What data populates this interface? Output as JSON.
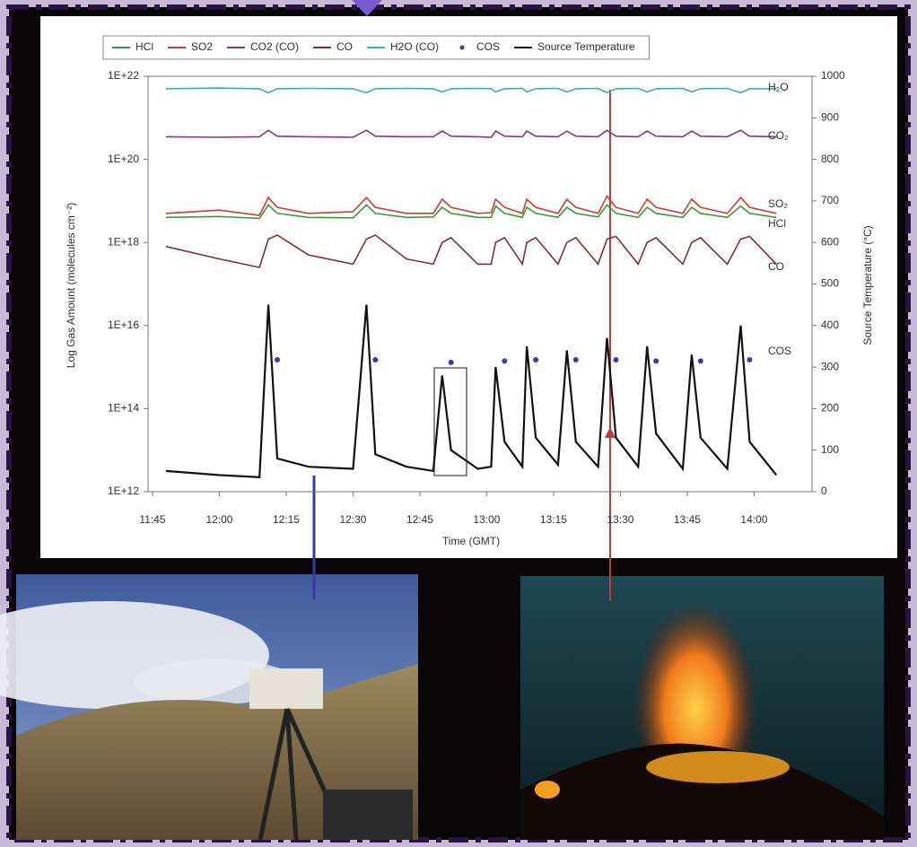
{
  "chart_data": {
    "type": "line",
    "x_label": "Time (GMT)",
    "y_label": "Log Gas Amount (molecules cm⁻²)",
    "y2_label": "Source Temperature (°C)",
    "log_y": true,
    "legend": "top",
    "xlim": [
      704,
      853
    ],
    "xticks": [
      {
        "value": 705,
        "label": "11:45"
      },
      {
        "value": 720,
        "label": "12:00"
      },
      {
        "value": 735,
        "label": "12:15"
      },
      {
        "value": 750,
        "label": "12:30"
      },
      {
        "value": 765,
        "label": "12:45"
      },
      {
        "value": 780,
        "label": "13:00"
      },
      {
        "value": 795,
        "label": "13:15"
      },
      {
        "value": 810,
        "label": "13:30"
      },
      {
        "value": 825,
        "label": "13:45"
      },
      {
        "value": 840,
        "label": "14:00"
      }
    ],
    "ylim": [
      1000000000000.0,
      1e+22
    ],
    "yticks": [
      {
        "value": 1000000000000.0,
        "label": "1E+12"
      },
      {
        "value": 100000000000000.0,
        "label": "1E+14"
      },
      {
        "value": 1e+16,
        "label": "1E+16"
      },
      {
        "value": 1e+18,
        "label": "1E+18"
      },
      {
        "value": 1e+20,
        "label": "1E+20"
      },
      {
        "value": 1e+22,
        "label": "1E+22"
      }
    ],
    "y2lim": [
      0,
      1000
    ],
    "y2ticks": [
      0,
      100,
      200,
      300,
      400,
      500,
      600,
      700,
      800,
      900,
      1000
    ],
    "annotations": [
      "H₂O",
      "CO₂",
      "SO₂",
      "HCl",
      "CO",
      "COS"
    ],
    "x": [
      708,
      720,
      729,
      731,
      733,
      740,
      750,
      753,
      755,
      762,
      768,
      770,
      772,
      778,
      781,
      782,
      784,
      788,
      789,
      791,
      796,
      798,
      800,
      805,
      807,
      809,
      814,
      816,
      818,
      824,
      826,
      828,
      834,
      837,
      839,
      845
    ],
    "series": [
      {
        "name": "HCl",
        "color": "#3a9a3a",
        "mode": "line",
        "values": [
          4e+18,
          4.2e+18,
          3.8e+18,
          8e+18,
          5e+18,
          4e+18,
          3.9e+18,
          8e+18,
          5e+18,
          4e+18,
          4.1e+18,
          7e+18,
          5e+18,
          4e+18,
          4e+18,
          7.5e+18,
          5e+18,
          4e+18,
          7e+18,
          5e+18,
          4e+18,
          7e+18,
          5e+18,
          4.1e+18,
          8e+18,
          5e+18,
          4e+18,
          7e+18,
          5e+18,
          4e+18,
          7e+18,
          5e+18,
          4e+18,
          7.5e+18,
          5e+18,
          4e+18
        ]
      },
      {
        "name": "SO2",
        "color": "#d43a2a",
        "mode": "line",
        "values": [
          5e+18,
          6e+18,
          4.5e+18,
          1.2e+19,
          7e+18,
          5e+18,
          5.5e+18,
          1.2e+19,
          7e+18,
          5e+18,
          5e+18,
          1.1e+19,
          7e+18,
          5e+18,
          5.2e+18,
          1.1e+19,
          7e+18,
          5e+18,
          1.1e+19,
          7e+18,
          5e+18,
          1.1e+19,
          7e+18,
          5e+18,
          1.3e+19,
          7e+18,
          5e+18,
          1.1e+19,
          7e+18,
          5e+18,
          1.1e+19,
          7e+18,
          5e+18,
          1.2e+19,
          7e+18,
          5e+18
        ]
      },
      {
        "name": "CO2 (CO)",
        "color": "#8a3a6a",
        "mode": "line",
        "values": [
          3.5e+20,
          3.4e+20,
          3.5e+20,
          5e+20,
          3.6e+20,
          3.5e+20,
          3.4e+20,
          5e+20,
          3.6e+20,
          3.5e+20,
          3.5e+20,
          4.8e+20,
          3.6e+20,
          3.5e+20,
          3.4e+20,
          4.8e+20,
          3.6e+20,
          3.5e+20,
          4.8e+20,
          3.6e+20,
          3.5e+20,
          4.8e+20,
          3.6e+20,
          3.5e+20,
          5e+20,
          3.6e+20,
          3.5e+20,
          4.8e+20,
          3.6e+20,
          3.5e+20,
          4.8e+20,
          3.6e+20,
          3.5e+20,
          5e+20,
          3.6e+20,
          3.5e+20
        ]
      },
      {
        "name": "CO",
        "color": "#8b2b2b",
        "mode": "line",
        "values": [
          8e+17,
          4e+17,
          2.5e+17,
          1.2e+18,
          1.5e+18,
          5e+17,
          3e+17,
          1.2e+18,
          1.5e+18,
          4e+17,
          3e+17,
          1e+18,
          1.3e+18,
          3e+17,
          3e+17,
          1e+18,
          1.3e+18,
          3e+17,
          1e+18,
          1.3e+18,
          3e+17,
          1e+18,
          1.3e+18,
          3e+17,
          1.2e+18,
          1.4e+18,
          3e+17,
          1e+18,
          1.3e+18,
          3e+17,
          1e+18,
          1.3e+18,
          3e+17,
          1.2e+18,
          1.4e+18,
          3e+17
        ]
      },
      {
        "name": "H2O (CO)",
        "color": "#3bb0a8",
        "mode": "line",
        "values": [
          5e+21,
          5.2e+21,
          5e+21,
          4e+21,
          5e+21,
          5.1e+21,
          5e+21,
          4e+21,
          5e+21,
          5.1e+21,
          5e+21,
          4.2e+21,
          5e+21,
          5.1e+21,
          5e+21,
          4.2e+21,
          5e+21,
          5.1e+21,
          4.2e+21,
          5e+21,
          5.1e+21,
          4.2e+21,
          5e+21,
          5.1e+21,
          4e+21,
          5e+21,
          5.1e+21,
          4.2e+21,
          5e+21,
          5.1e+21,
          4.2e+21,
          5e+21,
          5.1e+21,
          4e+21,
          5e+21,
          5e+21
        ]
      },
      {
        "name": "COS",
        "color": "#3a3ab0",
        "mode": "markers",
        "values": [
          null,
          null,
          null,
          null,
          1500000000000000.0,
          null,
          null,
          null,
          1500000000000000.0,
          null,
          null,
          null,
          1300000000000000.0,
          null,
          null,
          null,
          1400000000000000.0,
          null,
          null,
          1500000000000000.0,
          null,
          null,
          1500000000000000.0,
          null,
          null,
          1500000000000000.0,
          null,
          null,
          1400000000000000.0,
          null,
          null,
          1400000000000000.0,
          null,
          null,
          1500000000000000.0,
          null
        ]
      },
      {
        "name": "Source Temperature",
        "color": "#111111",
        "mode": "line",
        "axis": "y2",
        "values": [
          50,
          40,
          35,
          450,
          80,
          60,
          55,
          450,
          90,
          60,
          50,
          280,
          100,
          55,
          60,
          300,
          120,
          60,
          350,
          130,
          65,
          340,
          120,
          60,
          370,
          130,
          60,
          350,
          140,
          55,
          330,
          130,
          55,
          400,
          120,
          40
        ]
      }
    ]
  }
}
